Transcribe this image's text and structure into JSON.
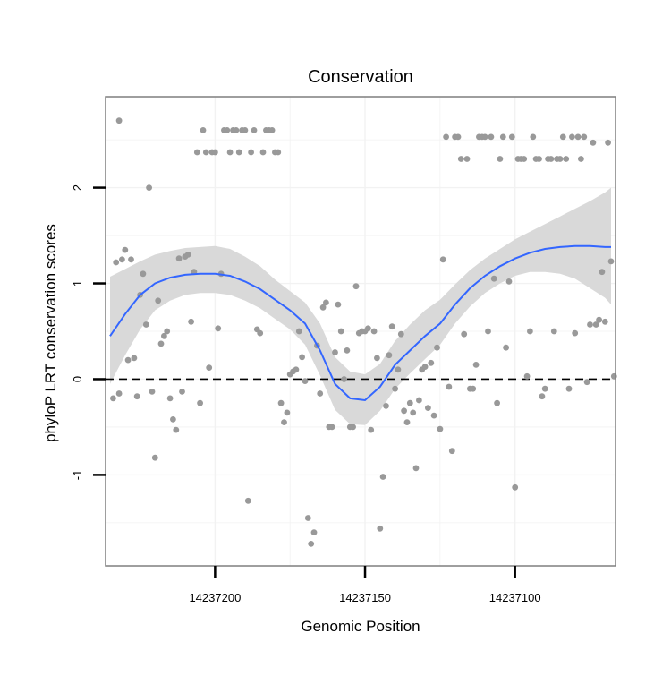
{
  "chart_data": {
    "type": "scatter",
    "title": "Conservation",
    "xlabel": "Genomic Position",
    "ylabel": "phyloP LRT conservation scores",
    "x_reversed": true,
    "xlim": [
      14237236.5,
      14237066.5
    ],
    "ylim": [
      -1.95,
      2.95
    ],
    "x_ticks": [
      14237200,
      14237150,
      14237100
    ],
    "x_tick_labels": [
      "14237200",
      "14237150",
      "14237100"
    ],
    "y_ticks": [
      -1,
      0,
      1,
      2
    ],
    "y_tick_labels": [
      "-1",
      "0",
      "1",
      "2"
    ],
    "reference_line": {
      "y": 0,
      "style": "dashed"
    },
    "grid": true,
    "colors": {
      "points": "#999999",
      "smooth_line": "#3366ff",
      "confidence_band": "#d9d9d9",
      "panel_border": "#7f7f7f"
    },
    "series": [
      {
        "kind": "points",
        "points": [
          [
            14237234,
            -0.2
          ],
          [
            14237233,
            1.22
          ],
          [
            14237232,
            2.7
          ],
          [
            14237232,
            -0.15
          ],
          [
            14237231,
            1.25
          ],
          [
            14237230,
            1.35
          ],
          [
            14237229,
            0.2
          ],
          [
            14237228,
            1.25
          ],
          [
            14237227,
            0.22
          ],
          [
            14237226,
            -0.18
          ],
          [
            14237225,
            0.88
          ],
          [
            14237224,
            1.1
          ],
          [
            14237223,
            0.57
          ],
          [
            14237222,
            2.0
          ],
          [
            14237221,
            -0.13
          ],
          [
            14237220,
            -0.82
          ],
          [
            14237219,
            0.82
          ],
          [
            14237218,
            0.37
          ],
          [
            14237217,
            0.45
          ],
          [
            14237216,
            0.5
          ],
          [
            14237215,
            -0.2
          ],
          [
            14237214,
            -0.42
          ],
          [
            14237213,
            -0.53
          ],
          [
            14237212,
            1.26
          ],
          [
            14237211,
            -0.13
          ],
          [
            14237210,
            1.28
          ],
          [
            14237209,
            1.3
          ],
          [
            14237208,
            0.6
          ],
          [
            14237207,
            1.12
          ],
          [
            14237206,
            2.37
          ],
          [
            14237205,
            -0.25
          ],
          [
            14237204,
            2.6
          ],
          [
            14237203,
            2.37
          ],
          [
            14237202,
            0.12
          ],
          [
            14237201,
            2.37
          ],
          [
            14237200,
            2.37
          ],
          [
            14237199,
            0.53
          ],
          [
            14237198,
            1.1
          ],
          [
            14237197,
            2.6
          ],
          [
            14237196,
            2.6
          ],
          [
            14237195,
            2.37
          ],
          [
            14237194,
            2.6
          ],
          [
            14237193,
            2.6
          ],
          [
            14237192,
            2.37
          ],
          [
            14237191,
            2.6
          ],
          [
            14237190,
            2.6
          ],
          [
            14237189,
            -1.27
          ],
          [
            14237188,
            2.37
          ],
          [
            14237187,
            2.6
          ],
          [
            14237186,
            0.52
          ],
          [
            14237185,
            0.48
          ],
          [
            14237184,
            2.37
          ],
          [
            14237183,
            2.6
          ],
          [
            14237182,
            2.6
          ],
          [
            14237181,
            2.6
          ],
          [
            14237180,
            2.37
          ],
          [
            14237179,
            2.37
          ],
          [
            14237178,
            -0.25
          ],
          [
            14237177,
            -0.45
          ],
          [
            14237176,
            -0.35
          ],
          [
            14237175,
            0.05
          ],
          [
            14237174,
            0.08
          ],
          [
            14237173,
            0.1
          ],
          [
            14237172,
            0.5
          ],
          [
            14237171,
            0.23
          ],
          [
            14237170,
            -0.02
          ],
          [
            14237169,
            -1.45
          ],
          [
            14237168,
            -1.72
          ],
          [
            14237167,
            -1.6
          ],
          [
            14237166,
            0.35
          ],
          [
            14237165,
            -0.15
          ],
          [
            14237164,
            0.75
          ],
          [
            14237163,
            0.8
          ],
          [
            14237162,
            -0.5
          ],
          [
            14237161,
            -0.5
          ],
          [
            14237160,
            0.28
          ],
          [
            14237159,
            0.78
          ],
          [
            14237158,
            0.5
          ],
          [
            14237157,
            0.0
          ],
          [
            14237156,
            0.3
          ],
          [
            14237155,
            -0.5
          ],
          [
            14237154,
            -0.5
          ],
          [
            14237153,
            0.97
          ],
          [
            14237152,
            0.48
          ],
          [
            14237151,
            0.5
          ],
          [
            14237150,
            0.5
          ],
          [
            14237149,
            0.53
          ],
          [
            14237148,
            -0.53
          ],
          [
            14237147,
            0.5
          ],
          [
            14237146,
            0.22
          ],
          [
            14237145,
            -1.56
          ],
          [
            14237144,
            -1.02
          ],
          [
            14237143,
            -0.28
          ],
          [
            14237142,
            0.25
          ],
          [
            14237141,
            0.55
          ],
          [
            14237140,
            -0.1
          ],
          [
            14237139,
            0.1
          ],
          [
            14237138,
            0.47
          ],
          [
            14237137,
            -0.33
          ],
          [
            14237136,
            -0.45
          ],
          [
            14237135,
            -0.25
          ],
          [
            14237134,
            -0.35
          ],
          [
            14237133,
            -0.93
          ],
          [
            14237132,
            -0.22
          ],
          [
            14237131,
            0.1
          ],
          [
            14237130,
            0.13
          ],
          [
            14237129,
            -0.3
          ],
          [
            14237128,
            0.17
          ],
          [
            14237127,
            -0.38
          ],
          [
            14237126,
            0.33
          ],
          [
            14237125,
            -0.52
          ],
          [
            14237124,
            1.25
          ],
          [
            14237123,
            2.53
          ],
          [
            14237122,
            -0.08
          ],
          [
            14237121,
            -0.75
          ],
          [
            14237120,
            2.53
          ],
          [
            14237119,
            2.53
          ],
          [
            14237118,
            2.3
          ],
          [
            14237117,
            0.47
          ],
          [
            14237116,
            2.3
          ],
          [
            14237115,
            -0.1
          ],
          [
            14237114,
            -0.1
          ],
          [
            14237113,
            0.15
          ],
          [
            14237112,
            2.53
          ],
          [
            14237111,
            2.53
          ],
          [
            14237110,
            2.53
          ],
          [
            14237109,
            0.5
          ],
          [
            14237108,
            2.53
          ],
          [
            14237107,
            1.05
          ],
          [
            14237106,
            -0.25
          ],
          [
            14237105,
            2.3
          ],
          [
            14237104,
            2.53
          ],
          [
            14237103,
            0.33
          ],
          [
            14237102,
            1.02
          ],
          [
            14237101,
            2.53
          ],
          [
            14237100,
            -1.13
          ],
          [
            14237099,
            2.3
          ],
          [
            14237098,
            2.3
          ],
          [
            14237097,
            2.3
          ],
          [
            14237096,
            0.03
          ],
          [
            14237095,
            0.5
          ],
          [
            14237094,
            2.53
          ],
          [
            14237093,
            2.3
          ],
          [
            14237092,
            2.3
          ],
          [
            14237091,
            -0.18
          ],
          [
            14237090,
            -0.1
          ],
          [
            14237089,
            2.3
          ],
          [
            14237088,
            2.3
          ],
          [
            14237087,
            0.5
          ],
          [
            14237086,
            2.3
          ],
          [
            14237085,
            2.3
          ],
          [
            14237084,
            2.53
          ],
          [
            14237083,
            2.3
          ],
          [
            14237082,
            -0.1
          ],
          [
            14237081,
            2.53
          ],
          [
            14237080,
            0.48
          ],
          [
            14237079,
            2.53
          ],
          [
            14237078,
            2.3
          ],
          [
            14237077,
            2.53
          ],
          [
            14237076,
            -0.03
          ],
          [
            14237075,
            0.57
          ],
          [
            14237074,
            2.47
          ],
          [
            14237073,
            0.57
          ],
          [
            14237072,
            0.62
          ],
          [
            14237071,
            1.12
          ],
          [
            14237070,
            0.6
          ],
          [
            14237069,
            2.47
          ],
          [
            14237068,
            1.23
          ],
          [
            14237067,
            0.03
          ]
        ]
      },
      {
        "kind": "smooth",
        "x": [
          14237235,
          14237230,
          14237225,
          14237220,
          14237215,
          14237210,
          14237205,
          14237200,
          14237195,
          14237190,
          14237185,
          14237180,
          14237175,
          14237170,
          14237165,
          14237160,
          14237155,
          14237150,
          14237145,
          14237140,
          14237135,
          14237130,
          14237125,
          14237120,
          14237115,
          14237110,
          14237105,
          14237100,
          14237095,
          14237090,
          14237085,
          14237080,
          14237075,
          14237070,
          14237068
        ],
        "y": [
          0.45,
          0.68,
          0.88,
          1.0,
          1.06,
          1.09,
          1.1,
          1.1,
          1.08,
          1.02,
          0.94,
          0.83,
          0.72,
          0.58,
          0.3,
          -0.05,
          -0.2,
          -0.22,
          -0.08,
          0.15,
          0.3,
          0.45,
          0.58,
          0.78,
          0.95,
          1.08,
          1.18,
          1.26,
          1.32,
          1.36,
          1.38,
          1.39,
          1.39,
          1.38,
          1.38
        ],
        "lower": [
          -0.05,
          0.25,
          0.52,
          0.72,
          0.82,
          0.88,
          0.9,
          0.9,
          0.88,
          0.82,
          0.74,
          0.63,
          0.52,
          0.36,
          0.04,
          -0.32,
          -0.47,
          -0.48,
          -0.33,
          -0.1,
          0.06,
          0.21,
          0.36,
          0.58,
          0.76,
          0.9,
          1.0,
          1.08,
          1.12,
          1.12,
          1.1,
          1.05,
          0.95,
          0.85,
          0.78
        ],
        "upper": [
          1.07,
          1.15,
          1.23,
          1.3,
          1.34,
          1.37,
          1.38,
          1.39,
          1.36,
          1.28,
          1.18,
          1.04,
          0.92,
          0.8,
          0.58,
          0.23,
          0.08,
          0.05,
          0.16,
          0.4,
          0.57,
          0.72,
          0.83,
          0.99,
          1.14,
          1.26,
          1.36,
          1.46,
          1.54,
          1.62,
          1.7,
          1.78,
          1.86,
          1.95,
          2.0
        ]
      }
    ]
  }
}
